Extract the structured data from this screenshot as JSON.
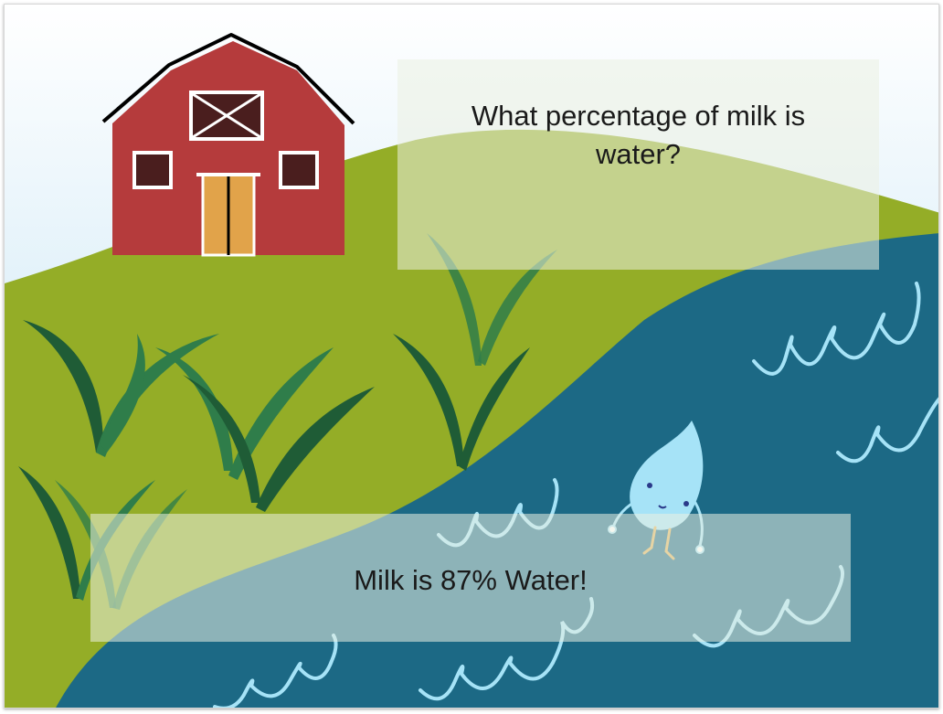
{
  "slide": {
    "question": "What percentage of milk is water?",
    "answer": "Milk is 87% Water!"
  },
  "colors": {
    "sky_top": "#ffffff",
    "sky_bottom": "#b8def2",
    "field": "#94ad27",
    "water": "#1c6985",
    "wave": "#a6e3f7",
    "barn": "#b53b3c",
    "barn_door": "#e1a34a",
    "barn_trim": "#ffffff",
    "barn_window": "#4a1e1e",
    "leaf_dark": "#1f5c36",
    "leaf_mid": "#2f7d4a",
    "droplet": "#a6e3f7"
  },
  "icons": {
    "barn": "barn-icon",
    "plants": "corn-plant-icon",
    "droplet": "water-droplet-character-icon",
    "waves": "wave-icon"
  }
}
